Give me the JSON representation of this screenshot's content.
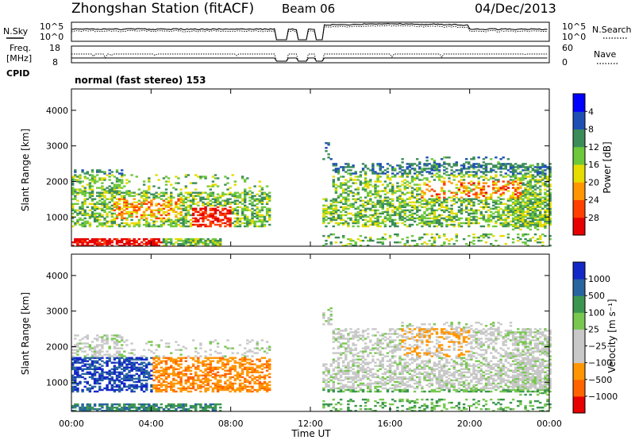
{
  "header": {
    "station": "Zhongshan Station (fitACF)",
    "beam": "Beam 06",
    "date": "04/Dec/2013"
  },
  "top_panels": {
    "nsky_label": "N.Sky",
    "nsearch_label": "N.Search",
    "freq_label_1": "Freq.",
    "freq_label_2": "[MHz]",
    "nave_label": "Nave",
    "cpid_label": "CPID",
    "cpid_text": "normal (fast stereo) 153",
    "noise_ticks_left": [
      "10^5",
      "10^0"
    ],
    "noise_ticks_right": [
      "10^5",
      "10^0"
    ],
    "freq_ticks": [
      "18",
      "8"
    ],
    "nave_ticks": [
      "60",
      "0"
    ]
  },
  "chart_data": [
    {
      "type": "heatmap",
      "ylabel": "Slant Range [km]",
      "xlabel": "Time UT",
      "x_ticks": [
        "00:00",
        "04:00",
        "08:00",
        "12:00",
        "16:00",
        "20:00",
        "00:00"
      ],
      "y_ticks": [
        1000,
        2000,
        3000,
        4000
      ],
      "ylim": [
        180,
        4600
      ],
      "xlim_hours": [
        0,
        24
      ],
      "colorbar": {
        "label": "Power [dB]",
        "ticks": [
          "4",
          "8",
          "12",
          "16",
          "20",
          "24",
          "28"
        ],
        "colors": [
          "#0000ff",
          "#1e50b4",
          "#3c8c5a",
          "#6ec83c",
          "#e6dc00",
          "#ff9600",
          "#ff4000",
          "#e60000"
        ]
      },
      "data_gaps_hours": [
        [
          10.2,
          10.8
        ],
        [
          11.3,
          11.8
        ],
        [
          12.2,
          12.6
        ]
      ]
    },
    {
      "type": "heatmap",
      "ylabel": "Slant Range [km]",
      "xlabel": "Time UT",
      "x_ticks": [
        "00:00",
        "04:00",
        "08:00",
        "12:00",
        "16:00",
        "20:00",
        "00:00"
      ],
      "y_ticks": [
        1000,
        2000,
        3000,
        4000
      ],
      "ylim": [
        180,
        4600
      ],
      "xlim_hours": [
        0,
        24
      ],
      "colorbar": {
        "label": "Velocity [m s⁻¹]",
        "ticks": [
          "1000",
          "500",
          "100",
          "25",
          "−25",
          "−100",
          "−500",
          "−1000"
        ],
        "colors": [
          "#1428c8",
          "#2864a0",
          "#3c9650",
          "#78c850",
          "#c8c8c8",
          "#c8c8c8",
          "#ff9600",
          "#ff6400",
          "#e60000"
        ]
      },
      "data_gaps_hours": [
        [
          10.2,
          10.8
        ],
        [
          11.3,
          11.8
        ],
        [
          12.2,
          12.6
        ]
      ]
    }
  ]
}
